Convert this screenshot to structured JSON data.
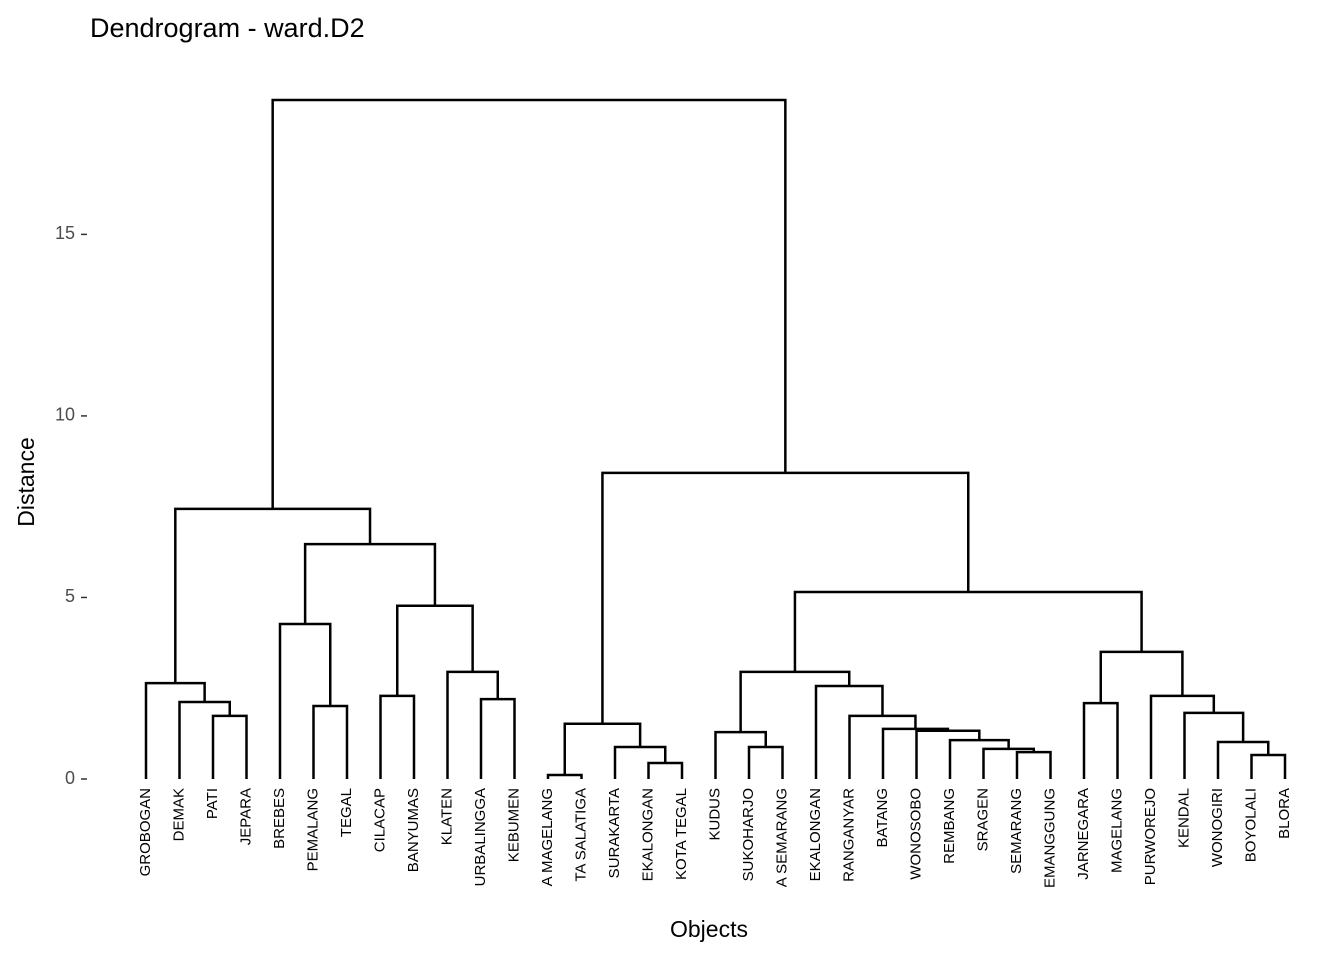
{
  "chart_data": {
    "type": "dendrogram",
    "title": "Dendrogram - ward.D2",
    "x_label": "Objects",
    "y_label": "Distance",
    "ylim": [
      0,
      19.5
    ],
    "yticks": [
      0,
      5,
      10,
      15
    ],
    "color": "#000000",
    "tree": {
      "height": 18.7,
      "children": [
        {
          "height": 7.44,
          "children": [
            {
              "height": 2.64,
              "children": [
                "GROBOGAN",
                {
                  "height": 2.12,
                  "children": [
                    "DEMAK",
                    {
                      "height": 1.74,
                      "children": [
                        "PATI",
                        "JEPARA"
                      ]
                    }
                  ]
                }
              ]
            },
            {
              "height": 6.47,
              "children": [
                {
                  "height": 4.27,
                  "children": [
                    "BREBES",
                    {
                      "height": 2.01,
                      "children": [
                        "PEMALANG",
                        "TEGAL"
                      ]
                    }
                  ]
                },
                {
                  "height": 4.77,
                  "children": [
                    {
                      "height": 2.29,
                      "children": [
                        "CILACAP",
                        "BANYUMAS"
                      ]
                    },
                    {
                      "height": 2.95,
                      "children": [
                        "KLATEN",
                        {
                          "height": 2.2,
                          "children": [
                            "URBALINGGA",
                            "KEBUMEN"
                          ]
                        }
                      ]
                    }
                  ]
                }
              ]
            }
          ]
        },
        {
          "height": 8.43,
          "children": [
            {
              "height": 1.52,
              "children": [
                {
                  "height": 0.11,
                  "children": [
                    "A MAGELANG",
                    "TA SALATIGA"
                  ]
                },
                {
                  "height": 0.88,
                  "children": [
                    "SURAKARTA",
                    {
                      "height": 0.44,
                      "children": [
                        "EKALONGAN",
                        "KOTA TEGAL"
                      ]
                    }
                  ]
                }
              ]
            },
            {
              "height": 5.15,
              "children": [
                {
                  "height": 2.95,
                  "children": [
                    {
                      "height": 1.29,
                      "children": [
                        "KUDUS",
                        {
                          "height": 0.88,
                          "children": [
                            "SUKOHARJO",
                            "A SEMARANG"
                          ]
                        }
                      ]
                    },
                    {
                      "height": 2.56,
                      "children": [
                        "EKALONGAN",
                        {
                          "height": 1.74,
                          "children": [
                            "RANGANYAR",
                            {
                              "height": 1.38,
                              "children": [
                                "BATANG",
                                {
                                  "height": 1.33,
                                  "children": [
                                    "WONOSOBO",
                                    {
                                      "height": 1.07,
                                      "children": [
                                        "REMBANG",
                                        {
                                          "height": 0.83,
                                          "children": [
                                            "SRAGEN",
                                            {
                                              "height": 0.74,
                                              "children": [
                                                "SEMARANG",
                                                "EMANGGUNG"
                                              ]
                                            }
                                          ]
                                        }
                                      ]
                                    }
                                  ]
                                }
                              ]
                            }
                          ]
                        }
                      ]
                    }
                  ]
                },
                {
                  "height": 3.5,
                  "children": [
                    {
                      "height": 2.09,
                      "children": [
                        "JARNEGARA",
                        "MAGELANG"
                      ]
                    },
                    {
                      "height": 2.29,
                      "children": [
                        "PURWOREJO",
                        {
                          "height": 1.82,
                          "children": [
                            "KENDAL",
                            {
                              "height": 1.02,
                              "children": [
                                "WONOGIRI",
                                {
                                  "height": 0.66,
                                  "children": [
                                    "BOYOLALI",
                                    "BLORA"
                                  ]
                                }
                              ]
                            }
                          ]
                        }
                      ]
                    }
                  ]
                }
              ]
            }
          ]
        }
      ]
    }
  }
}
